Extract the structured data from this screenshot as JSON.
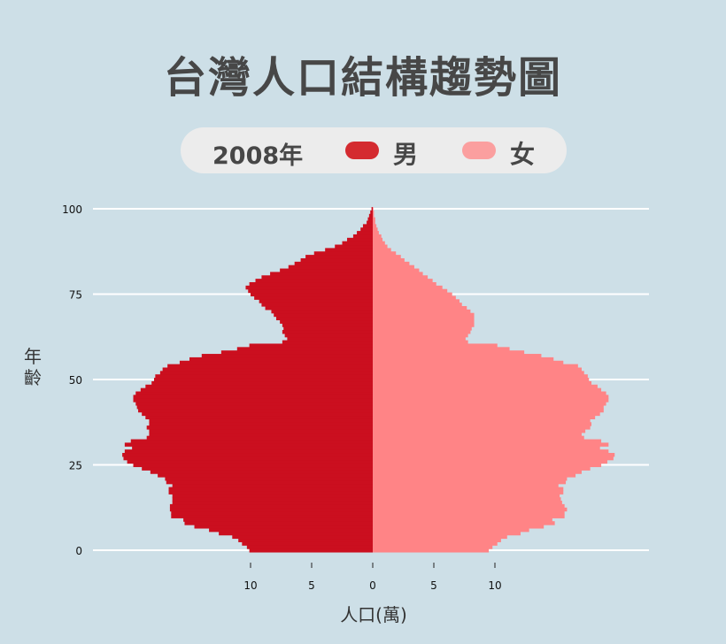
{
  "title": "台灣人口結構趨勢圖",
  "legend": {
    "year": "2008年",
    "male": "男",
    "female": "女"
  },
  "colors": {
    "male": "#cb0f1f",
    "female": "#ff8486",
    "male_legend": "#d42b30",
    "female_legend": "#fb9f9f",
    "grid": "#ffffff"
  },
  "chart_data": {
    "type": "bar",
    "orientation": "horizontal-pyramid",
    "ylabel": "年齡",
    "xlabel": "人口(萬)",
    "y_ticks": [
      0,
      25,
      50,
      75,
      100
    ],
    "x_ticks": [
      -10,
      -5,
      0,
      5,
      10
    ],
    "x_tick_labels": [
      "10",
      "5",
      "0",
      "5",
      "10"
    ],
    "ylim": [
      0,
      100
    ],
    "xlim": [
      -20,
      20
    ],
    "ages": [
      0,
      1,
      2,
      3,
      4,
      5,
      6,
      7,
      8,
      9,
      10,
      11,
      12,
      13,
      14,
      15,
      16,
      17,
      18,
      19,
      20,
      21,
      22,
      23,
      24,
      25,
      26,
      27,
      28,
      29,
      30,
      31,
      32,
      33,
      34,
      35,
      36,
      37,
      38,
      39,
      40,
      41,
      42,
      43,
      44,
      45,
      46,
      47,
      48,
      49,
      50,
      51,
      52,
      53,
      54,
      55,
      56,
      57,
      58,
      59,
      60,
      61,
      62,
      63,
      64,
      65,
      66,
      67,
      68,
      69,
      70,
      71,
      72,
      73,
      74,
      75,
      76,
      77,
      78,
      79,
      80,
      81,
      82,
      83,
      84,
      85,
      86,
      87,
      88,
      89,
      90,
      91,
      92,
      93,
      94,
      95,
      96,
      97,
      98,
      99,
      100
    ],
    "series": [
      {
        "name": "男",
        "values": [
          10.1,
          10.3,
          10.7,
          11.0,
          11.5,
          12.6,
          13.4,
          14.6,
          15.4,
          15.5,
          16.5,
          16.5,
          16.6,
          16.6,
          16.4,
          16.4,
          16.4,
          16.7,
          16.7,
          16.4,
          16.9,
          17.0,
          17.6,
          18.2,
          18.9,
          19.6,
          20.1,
          20.4,
          20.5,
          20.3,
          19.7,
          20.3,
          19.8,
          18.5,
          18.3,
          18.3,
          18.5,
          18.3,
          18.3,
          18.6,
          18.9,
          19.2,
          19.3,
          19.4,
          19.6,
          19.6,
          19.4,
          19.0,
          18.6,
          18.1,
          17.9,
          17.8,
          17.4,
          17.2,
          16.8,
          15.8,
          15.0,
          14.0,
          12.4,
          11.1,
          10.1,
          7.4,
          7.0,
          7.2,
          7.4,
          7.3,
          7.4,
          7.6,
          7.9,
          8.1,
          8.3,
          8.8,
          9.1,
          9.3,
          9.7,
          10.0,
          10.2,
          10.4,
          10.1,
          9.6,
          9.1,
          8.4,
          7.6,
          6.9,
          6.4,
          5.9,
          5.5,
          4.8,
          3.9,
          3.1,
          2.5,
          2.1,
          1.6,
          1.3,
          1.0,
          0.8,
          0.5,
          0.4,
          0.3,
          0.2,
          0.1
        ]
      },
      {
        "name": "女",
        "values": [
          9.5,
          9.8,
          10.2,
          10.5,
          11.0,
          12.1,
          12.8,
          14.0,
          14.9,
          14.7,
          15.7,
          15.7,
          15.9,
          15.7,
          15.5,
          15.4,
          15.3,
          15.6,
          15.6,
          15.2,
          15.8,
          15.9,
          16.6,
          17.1,
          17.8,
          18.7,
          19.2,
          19.7,
          19.8,
          19.3,
          18.6,
          19.3,
          18.7,
          17.3,
          17.1,
          17.4,
          17.8,
          17.9,
          17.8,
          18.2,
          18.6,
          18.9,
          18.9,
          19.1,
          19.3,
          19.3,
          19.1,
          18.7,
          18.4,
          17.9,
          17.7,
          17.6,
          17.3,
          17.1,
          16.8,
          15.6,
          14.8,
          13.8,
          12.4,
          11.2,
          10.2,
          7.8,
          7.6,
          7.8,
          8.0,
          8.1,
          8.3,
          8.3,
          8.3,
          8.3,
          8.0,
          7.7,
          7.3,
          7.1,
          6.8,
          6.5,
          6.1,
          5.7,
          5.2,
          4.9,
          4.5,
          4.1,
          3.8,
          3.4,
          3.0,
          2.6,
          2.3,
          1.9,
          1.5,
          1.2,
          1.0,
          0.8,
          0.7,
          0.5,
          0.4,
          0.3,
          0.2,
          0.2,
          0.1,
          0.1,
          0.05
        ]
      }
    ],
    "grid": true,
    "legend_position": "top-center"
  }
}
